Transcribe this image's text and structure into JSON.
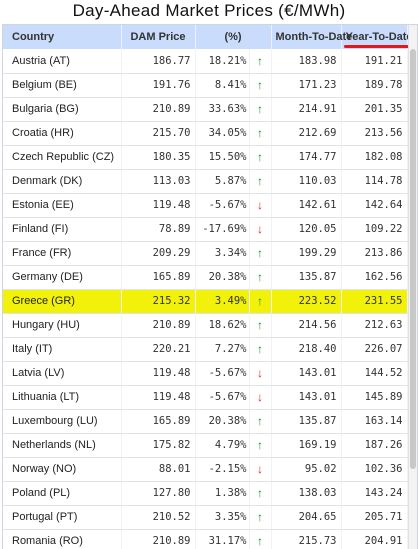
{
  "title": "Day-Ahead Market Prices (€/MWh)",
  "headers": {
    "country": "Country",
    "dam_price": "DAM Price",
    "pct": "(%)",
    "mtd": "Month-To-Date",
    "ytd": "Year-To-Date"
  },
  "colors": {
    "positive": "#1d8a2e",
    "negative": "#dd2020",
    "header_bg": "#c9dcfb",
    "highlight": "#f1f10a",
    "underline": "#e0191f"
  },
  "rows": [
    {
      "country": "Austria (AT)",
      "dam": "186.77",
      "pct": "18.21%",
      "dir": "up",
      "arrow": "↑",
      "mtd": "183.98",
      "ytd": "191.21"
    },
    {
      "country": "Belgium (BE)",
      "dam": "191.76",
      "pct": "8.41%",
      "dir": "up",
      "arrow": "↑",
      "mtd": "171.23",
      "ytd": "189.78"
    },
    {
      "country": "Bulgaria (BG)",
      "dam": "210.89",
      "pct": "33.63%",
      "dir": "up",
      "arrow": "↑",
      "mtd": "214.91",
      "ytd": "201.35"
    },
    {
      "country": "Croatia (HR)",
      "dam": "215.70",
      "pct": "34.05%",
      "dir": "up",
      "arrow": "↑",
      "mtd": "212.69",
      "ytd": "213.56"
    },
    {
      "country": "Czech Republic (CZ)",
      "dam": "180.35",
      "pct": "15.50%",
      "dir": "up",
      "arrow": "↑",
      "mtd": "174.77",
      "ytd": "182.08"
    },
    {
      "country": "Denmark (DK)",
      "dam": "113.03",
      "pct": "5.87%",
      "dir": "up",
      "arrow": "↑",
      "mtd": "110.03",
      "ytd": "114.78"
    },
    {
      "country": "Estonia (EE)",
      "dam": "119.48",
      "pct": "-5.67%",
      "dir": "down",
      "arrow": "↓",
      "mtd": "142.61",
      "ytd": "142.64"
    },
    {
      "country": "Finland (FI)",
      "dam": "78.89",
      "pct": "-17.69%",
      "dir": "down",
      "arrow": "↓",
      "mtd": "120.05",
      "ytd": "109.22"
    },
    {
      "country": "France (FR)",
      "dam": "209.29",
      "pct": "3.34%",
      "dir": "up",
      "arrow": "↑",
      "mtd": "199.29",
      "ytd": "213.86"
    },
    {
      "country": "Germany (DE)",
      "dam": "165.89",
      "pct": "20.38%",
      "dir": "up",
      "arrow": "↑",
      "mtd": "135.87",
      "ytd": "162.56"
    },
    {
      "country": "Greece (GR)",
      "dam": "215.32",
      "pct": "3.49%",
      "dir": "up",
      "arrow": "↑",
      "mtd": "223.52",
      "ytd": "231.55",
      "highlight": true
    },
    {
      "country": "Hungary (HU)",
      "dam": "210.89",
      "pct": "18.62%",
      "dir": "up",
      "arrow": "↑",
      "mtd": "214.56",
      "ytd": "212.63"
    },
    {
      "country": "Italy (IT)",
      "dam": "220.21",
      "pct": "7.27%",
      "dir": "up",
      "arrow": "↑",
      "mtd": "218.40",
      "ytd": "226.07"
    },
    {
      "country": "Latvia (LV)",
      "dam": "119.48",
      "pct": "-5.67%",
      "dir": "down",
      "arrow": "↓",
      "mtd": "143.01",
      "ytd": "144.52"
    },
    {
      "country": "Lithuania (LT)",
      "dam": "119.48",
      "pct": "-5.67%",
      "dir": "down",
      "arrow": "↓",
      "mtd": "143.01",
      "ytd": "145.89"
    },
    {
      "country": "Luxembourg (LU)",
      "dam": "165.89",
      "pct": "20.38%",
      "dir": "up",
      "arrow": "↑",
      "mtd": "135.87",
      "ytd": "163.14"
    },
    {
      "country": "Netherlands (NL)",
      "dam": "175.82",
      "pct": "4.79%",
      "dir": "up",
      "arrow": "↑",
      "mtd": "169.19",
      "ytd": "187.26"
    },
    {
      "country": "Norway (NO)",
      "dam": "88.01",
      "pct": "-2.15%",
      "dir": "down",
      "arrow": "↓",
      "mtd": "95.02",
      "ytd": "102.36"
    },
    {
      "country": "Poland (PL)",
      "dam": "127.80",
      "pct": "1.38%",
      "dir": "up",
      "arrow": "↑",
      "mtd": "138.03",
      "ytd": "143.24"
    },
    {
      "country": "Portugal (PT)",
      "dam": "210.52",
      "pct": "3.35%",
      "dir": "up",
      "arrow": "↑",
      "mtd": "204.65",
      "ytd": "205.71"
    },
    {
      "country": "Romania (RO)",
      "dam": "210.89",
      "pct": "31.17%",
      "dir": "up",
      "arrow": "↑",
      "mtd": "215.73",
      "ytd": "204.91"
    }
  ]
}
